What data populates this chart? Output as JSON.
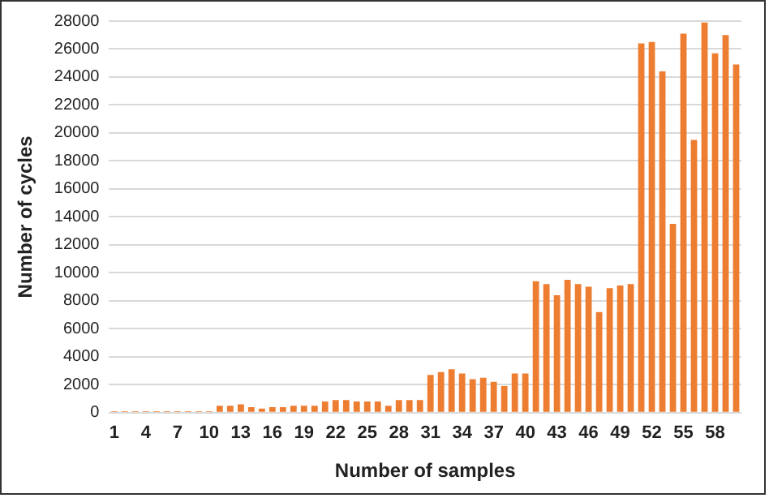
{
  "chart_data": {
    "type": "bar",
    "xlabel": "Number of samples",
    "ylabel": "Number of cycles",
    "categories": [
      "1",
      null,
      null,
      "4",
      null,
      null,
      "7",
      null,
      null,
      "10",
      null,
      null,
      "13",
      null,
      null,
      "16",
      null,
      null,
      "19",
      null,
      null,
      "22",
      null,
      null,
      "25",
      null,
      null,
      "28",
      null,
      null,
      "31",
      null,
      null,
      "34",
      null,
      null,
      "37",
      null,
      null,
      "40",
      null,
      null,
      "43",
      null,
      null,
      "46",
      null,
      null,
      "49",
      null,
      null,
      "52",
      null,
      null,
      "55",
      null,
      null,
      "58",
      null,
      null
    ],
    "values": [
      100,
      100,
      100,
      100,
      100,
      100,
      100,
      100,
      100,
      100,
      500,
      500,
      600,
      400,
      300,
      400,
      400,
      500,
      500,
      500,
      800,
      900,
      900,
      800,
      800,
      800,
      500,
      900,
      900,
      900,
      2700,
      2900,
      3100,
      2800,
      2400,
      2500,
      2200,
      1900,
      2800,
      2800,
      9400,
      9200,
      8400,
      9500,
      9200,
      9000,
      7200,
      8900,
      9100,
      9200,
      26400,
      26500,
      24400,
      13500,
      27100,
      19500,
      27900,
      25700,
      27000,
      24900
    ],
    "color": "#ed7d31",
    "ylim": [
      0,
      28000
    ],
    "yticks": [
      0,
      2000,
      4000,
      6000,
      8000,
      10000,
      12000,
      14000,
      16000,
      18000,
      20000,
      22000,
      24000,
      26000,
      28000
    ],
    "grid": "y"
  }
}
